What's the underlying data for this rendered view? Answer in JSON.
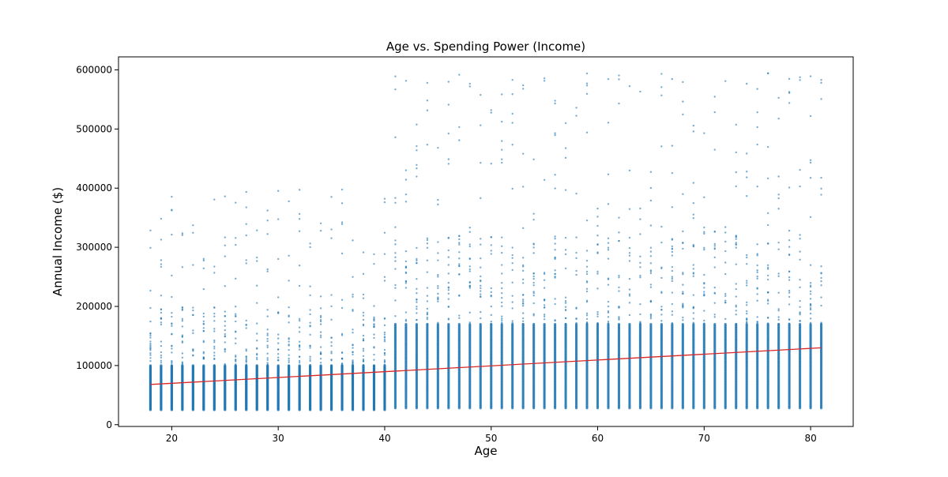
{
  "chart_data": {
    "type": "scatter",
    "title": "Age vs. Spending Power (Income)",
    "xlabel": "Age",
    "ylabel": "Annual Income ($)",
    "xlim": [
      15,
      84
    ],
    "ylim": [
      -3000,
      622000
    ],
    "x_ticks": [
      20,
      30,
      40,
      50,
      60,
      70,
      80
    ],
    "y_ticks": [
      0,
      100000,
      200000,
      300000,
      400000,
      500000,
      600000
    ],
    "grid": false,
    "legend": "none",
    "age_range": [
      18,
      81
    ],
    "series": [
      {
        "type": "scatter",
        "color": "#1f77b4",
        "distribution": [
          {
            "ages": [
              18,
              40
            ],
            "dense_income_range": [
              25000,
              100000
            ],
            "sparse_income_range": [
              100000,
              200000
            ],
            "outlier_max": 400000
          },
          {
            "ages": [
              41,
              81
            ],
            "dense_income_range": [
              28000,
              170000
            ],
            "sparse_income_range": [
              170000,
              320000
            ],
            "outlier_max": 595000
          }
        ]
      },
      {
        "type": "line",
        "color": "#d62728",
        "x": [
          18,
          81
        ],
        "y": [
          68000,
          130000
        ]
      }
    ]
  }
}
